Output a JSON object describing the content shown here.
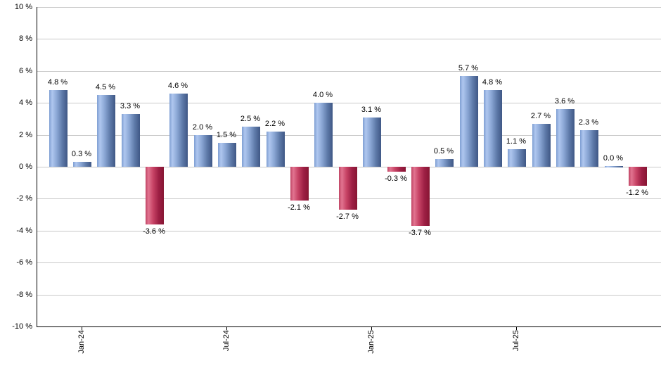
{
  "chart_data": {
    "type": "bar",
    "title": "",
    "xlabel": "",
    "ylabel": "",
    "ylim": [
      -10,
      10
    ],
    "y_tick_step": 2,
    "grid": "horizontal",
    "legend": "none",
    "values": [
      4.8,
      0.3,
      4.5,
      3.3,
      -3.6,
      4.6,
      2.0,
      1.5,
      2.5,
      2.2,
      -2.1,
      4.0,
      -2.7,
      3.1,
      -0.3,
      -3.7,
      0.5,
      5.7,
      4.8,
      1.1,
      2.7,
      3.6,
      2.3,
      0.0,
      -1.2
    ],
    "bar_labels": [
      "4.8 %",
      "0.3 %",
      "4.5 %",
      "3.3 %",
      "-3.6 %",
      "4.6 %",
      "2.0 %",
      "1.5 %",
      "2.5 %",
      "2.2 %",
      "-2.1 %",
      "4.0 %",
      "-2.7 %",
      "3.1 %",
      "-0.3 %",
      "-3.7 %",
      "0.5 %",
      "5.7 %",
      "4.8 %",
      "1.1 %",
      "2.7 %",
      "3.6 %",
      "2.3 %",
      "0.0 %",
      "-1.2 %"
    ],
    "x_ticks": [
      {
        "label": "Jan-24",
        "bar_index": 2
      },
      {
        "label": "Jul-24",
        "bar_index": 8
      },
      {
        "label": "Jan-25",
        "bar_index": 14
      },
      {
        "label": "Jul-25",
        "bar_index": 20
      }
    ],
    "y_ticks": [
      {
        "label": "10 %",
        "value": 10
      },
      {
        "label": "8 %",
        "value": 8
      },
      {
        "label": "6 %",
        "value": 6
      },
      {
        "label": "4 %",
        "value": 4
      },
      {
        "label": "2 %",
        "value": 2
      },
      {
        "label": "0 %",
        "value": 0
      },
      {
        "label": "-2 %",
        "value": -2
      },
      {
        "label": "-4 %",
        "value": -4
      },
      {
        "label": "-6 %",
        "value": -6
      },
      {
        "label": "-8 %",
        "value": -8
      },
      {
        "label": "-10 %",
        "value": -10
      }
    ],
    "colors": {
      "positive_bar_stops": [
        "#7e9ed2",
        "#afc7ef",
        "#8aa6d4",
        "#5d79a8",
        "#3f5785"
      ],
      "negative_bar_stops": [
        "#c04565",
        "#e27490",
        "#c64264",
        "#9d1f44",
        "#871533"
      ],
      "gridline": "#c9c9c9",
      "axis": "#000000",
      "text": "#000000",
      "background": "#ffffff"
    }
  }
}
